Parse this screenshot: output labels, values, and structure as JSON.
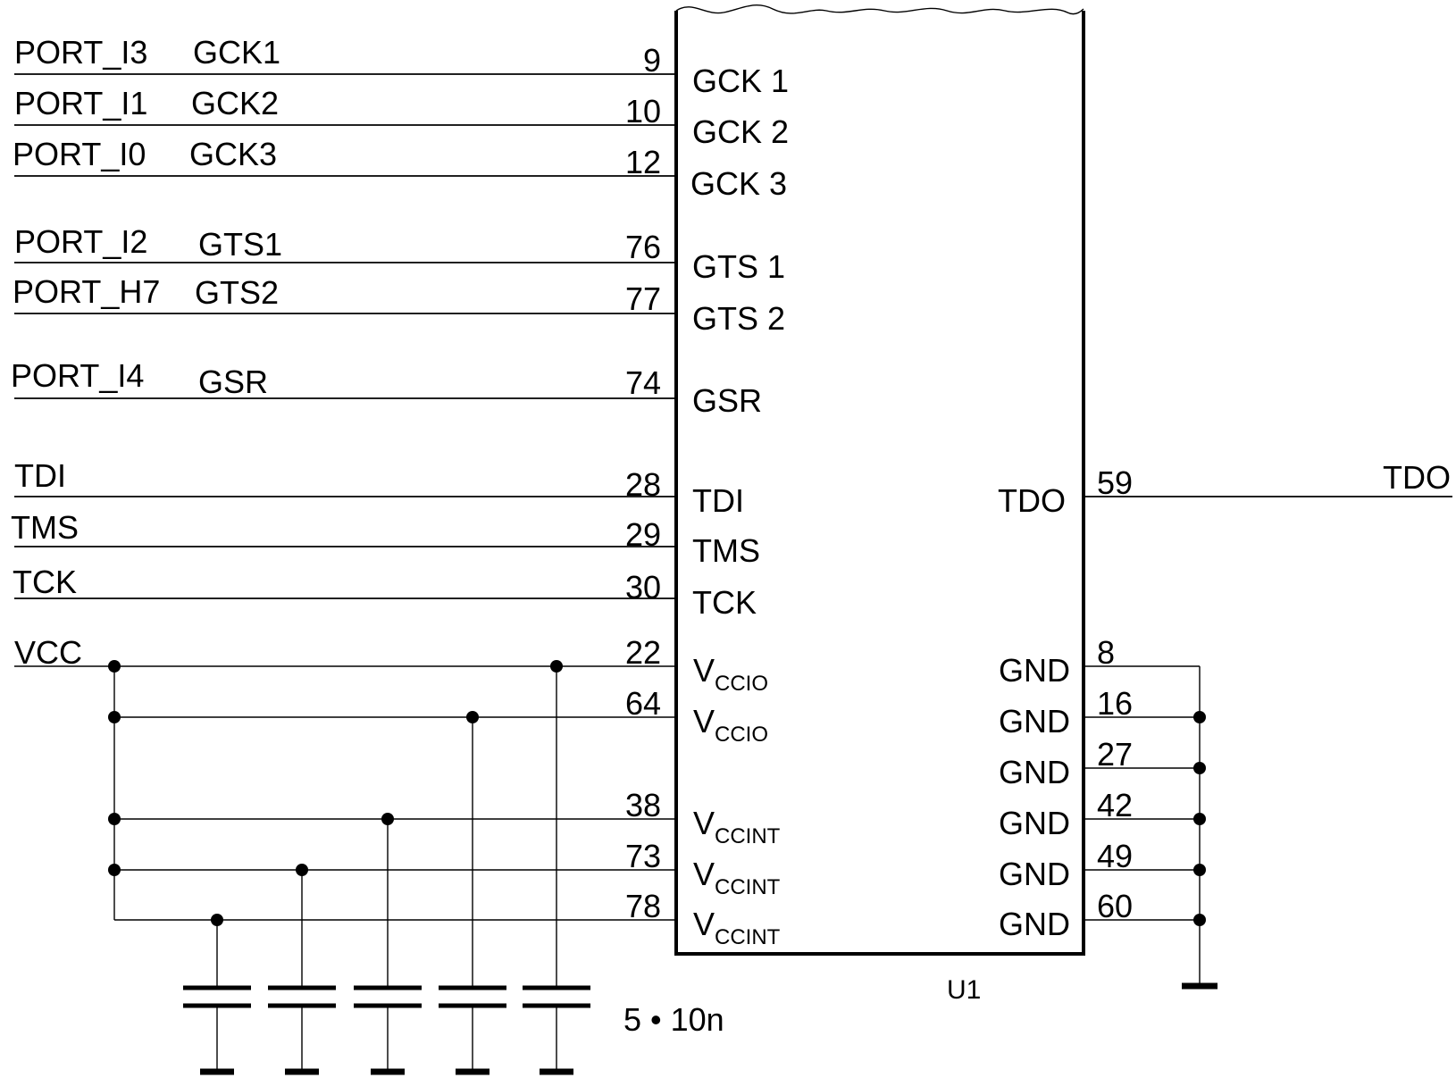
{
  "component": {
    "ref": "U1",
    "left_pins": [
      {
        "net": "PORT_I3",
        "alt": "GCK1",
        "num": "9",
        "name": "GCK 1"
      },
      {
        "net": "PORT_I1",
        "alt": "GCK2",
        "num": "10",
        "name": "GCK 2"
      },
      {
        "net": "PORT_I0",
        "alt": "GCK3",
        "num": "12",
        "name": "GCK 3"
      },
      {
        "net": "PORT_I2",
        "alt": "GTS1",
        "num": "76",
        "name": "GTS 1"
      },
      {
        "net": "PORT_H7",
        "alt": "GTS2",
        "num": "77",
        "name": "GTS 2"
      },
      {
        "net": "PORT_I4",
        "alt": "GSR",
        "num": "74",
        "name": "GSR"
      },
      {
        "net": "TDI",
        "alt": "",
        "num": "28",
        "name": "TDI"
      },
      {
        "net": "TMS",
        "alt": "",
        "num": "29",
        "name": "TMS"
      },
      {
        "net": "TCK",
        "alt": "",
        "num": "30",
        "name": "TCK"
      }
    ],
    "power_pins": [
      {
        "num": "22",
        "base": "V",
        "sub": "CCIO"
      },
      {
        "num": "64",
        "base": "V",
        "sub": "CCIO"
      },
      {
        "num": "38",
        "base": "V",
        "sub": "CCINT"
      },
      {
        "num": "73",
        "base": "V",
        "sub": "CCINT"
      },
      {
        "num": "78",
        "base": "V",
        "sub": "CCINT"
      }
    ],
    "right_pins": [
      {
        "num": "59",
        "name": "TDO",
        "net": "TDO"
      }
    ],
    "gnd_pins": [
      {
        "num": "8",
        "name": "GND"
      },
      {
        "num": "16",
        "name": "GND"
      },
      {
        "num": "27",
        "name": "GND"
      },
      {
        "num": "42",
        "name": "GND"
      },
      {
        "num": "49",
        "name": "GND"
      },
      {
        "num": "60",
        "name": "GND"
      }
    ]
  },
  "power_net": "VCC",
  "capacitors": {
    "label": "5 • 10n",
    "count": 5
  }
}
